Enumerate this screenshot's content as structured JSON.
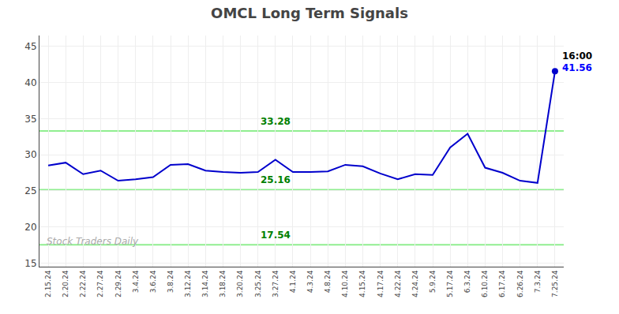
{
  "chart_data": {
    "type": "line",
    "title": "OMCL Long Term Signals",
    "categories": [
      "2.15.24",
      "2.20.24",
      "2.22.24",
      "2.27.24",
      "2.29.24",
      "3.4.24",
      "3.6.24",
      "3.8.24",
      "3.12.24",
      "3.14.24",
      "3.18.24",
      "3.20.24",
      "3.25.24",
      "3.27.24",
      "4.1.24",
      "4.3.24",
      "4.8.24",
      "4.10.24",
      "4.15.24",
      "4.17.24",
      "4.22.24",
      "4.24.24",
      "5.9.24",
      "5.17.24",
      "6.3.24",
      "6.10.24",
      "6.17.24",
      "6.26.24",
      "7.3.24",
      "7.25.24"
    ],
    "values": [
      28.5,
      28.9,
      27.3,
      27.8,
      26.4,
      26.6,
      26.9,
      28.6,
      28.7,
      27.8,
      27.6,
      27.5,
      27.6,
      29.3,
      27.6,
      27.6,
      27.7,
      28.6,
      28.4,
      27.4,
      26.6,
      27.3,
      27.2,
      31.0,
      32.9,
      28.2,
      27.5,
      26.4,
      26.1,
      41.56
    ],
    "color": "#0000cc",
    "hlines": [
      {
        "value": 33.28,
        "color": "#90ee90"
      },
      {
        "value": 25.16,
        "color": "#90ee90"
      },
      {
        "value": 17.54,
        "color": "#90ee90"
      }
    ],
    "annotations": [
      {
        "text": "33.28",
        "x": "3.27.24",
        "y": 33.28,
        "color": "#008000"
      },
      {
        "text": "25.16",
        "x": "3.27.24",
        "y": 25.16,
        "color": "#008000"
      },
      {
        "text": "17.54",
        "x": "3.27.24",
        "y": 17.54,
        "color": "#008000"
      },
      {
        "text": "16:00",
        "x": "7.25.24",
        "y": 41.56,
        "color": "#000000"
      },
      {
        "text": "41.56",
        "x": "7.25.24",
        "y": 41.56,
        "color": "#0000ff"
      },
      {
        "text": "Stock Traders Daily",
        "color": "#aaaaaa"
      }
    ],
    "ylim": [
      14.5,
      46.5
    ],
    "yticks": [
      15,
      20,
      25,
      30,
      35,
      40,
      45
    ],
    "grid": true
  }
}
